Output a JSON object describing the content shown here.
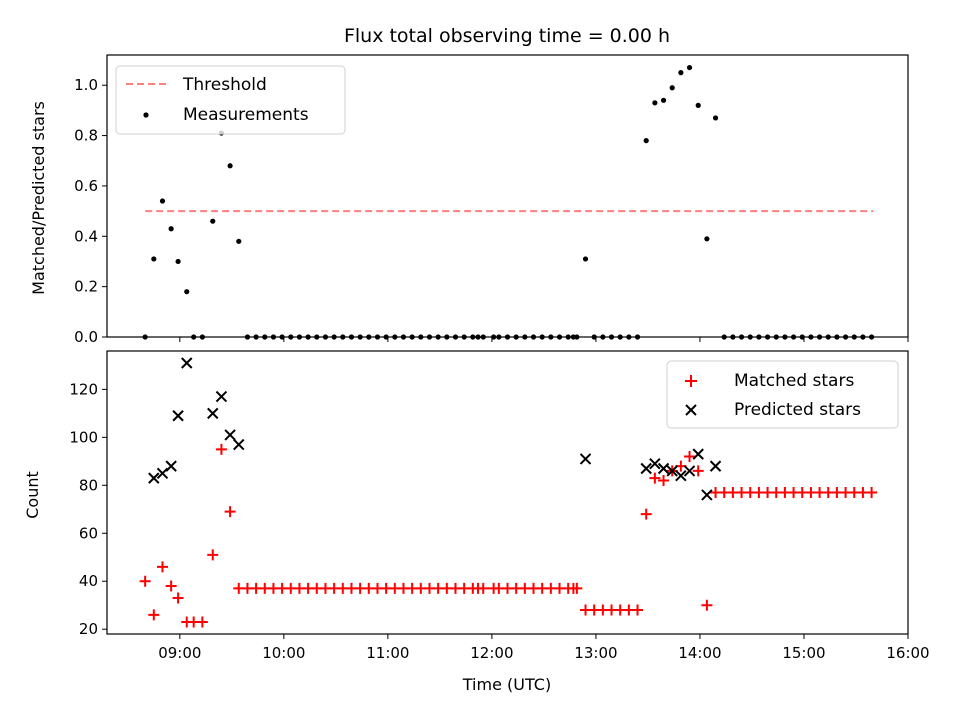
{
  "chart_data": [
    {
      "type": "scatter",
      "title": "Flux total observing time = 0.00 h",
      "xlabel": "",
      "ylabel": "Matched/Predicted stars",
      "xlim": [
        "08:18",
        "16:00"
      ],
      "ylim": [
        0,
        1.12
      ],
      "yticks": [
        {
          "value": 0.0,
          "label": "0.0"
        },
        {
          "value": 0.2,
          "label": "0.2"
        },
        {
          "value": 0.4,
          "label": "0.4"
        },
        {
          "value": 0.6,
          "label": "0.6"
        },
        {
          "value": 0.8,
          "label": "0.8"
        },
        {
          "value": 1.0,
          "label": "1.0"
        }
      ],
      "legend": {
        "placement": "upper-left",
        "entries": [
          {
            "label": "Threshold",
            "style": "dashed-line",
            "color": "#ff7f7f"
          },
          {
            "label": "Measurements",
            "style": "dot",
            "color": "#000000"
          }
        ]
      },
      "series": [
        {
          "name": "Threshold",
          "type": "line",
          "color": "#ff7f7f",
          "x": [
            "08:40",
            "15:40"
          ],
          "y": [
            0.5,
            0.5
          ]
        },
        {
          "name": "Measurements",
          "type": "scatter",
          "color": "#000000",
          "x": [
            "08:40",
            "08:45",
            "08:50",
            "08:55",
            "08:59",
            "09:04",
            "09:08",
            "09:13",
            "09:19",
            "09:24",
            "09:29",
            "09:34",
            "09:39",
            "09:44",
            "09:49",
            "09:54",
            "09:59",
            "10:04",
            "10:09",
            "10:14",
            "10:19",
            "10:24",
            "10:29",
            "10:34",
            "10:39",
            "10:44",
            "10:49",
            "10:54",
            "10:59",
            "11:04",
            "11:09",
            "11:14",
            "11:19",
            "11:24",
            "11:29",
            "11:34",
            "11:39",
            "11:44",
            "11:49",
            "11:52",
            "11:55",
            "12:01",
            "12:04",
            "12:09",
            "12:14",
            "12:19",
            "12:24",
            "12:29",
            "12:34",
            "12:39",
            "12:44",
            "12:47",
            "12:49",
            "12:54",
            "12:59",
            "13:04",
            "13:09",
            "13:14",
            "13:19",
            "13:24",
            "13:29",
            "13:34",
            "13:39",
            "13:44",
            "13:49",
            "13:54",
            "13:59",
            "14:04",
            "14:09",
            "14:14",
            "14:19",
            "14:24",
            "14:29",
            "14:34",
            "14:39",
            "14:44",
            "14:49",
            "14:54",
            "14:59",
            "15:04",
            "15:09",
            "15:14",
            "15:19",
            "15:24",
            "15:29",
            "15:34",
            "15:39"
          ],
          "y": [
            0.0,
            0.31,
            0.54,
            0.43,
            0.3,
            0.18,
            0.0,
            0.0,
            0.46,
            0.81,
            0.68,
            0.38,
            0.0,
            0.0,
            0.0,
            0.0,
            0.0,
            0.0,
            0.0,
            0.0,
            0.0,
            0.0,
            0.0,
            0.0,
            0.0,
            0.0,
            0.0,
            0.0,
            0.0,
            0.0,
            0.0,
            0.0,
            0.0,
            0.0,
            0.0,
            0.0,
            0.0,
            0.0,
            0.0,
            0.0,
            0.0,
            0.0,
            0.0,
            0.0,
            0.0,
            0.0,
            0.0,
            0.0,
            0.0,
            0.0,
            0.0,
            0.0,
            0.0,
            0.31,
            0.0,
            0.0,
            0.0,
            0.0,
            0.0,
            0.0,
            0.78,
            0.93,
            0.94,
            0.99,
            1.05,
            1.07,
            0.92,
            0.39,
            0.87,
            0.0,
            0.0,
            0.0,
            0.0,
            0.0,
            0.0,
            0.0,
            0.0,
            0.0,
            0.0,
            0.0,
            0.0,
            0.0,
            0.0,
            0.0,
            0.0,
            0.0,
            0.0
          ]
        }
      ]
    },
    {
      "type": "scatter",
      "title": "",
      "xlabel": "Time (UTC)",
      "ylabel": "Count",
      "xlim": [
        "08:18",
        "16:00"
      ],
      "ylim": [
        18,
        136
      ],
      "xticks": [
        {
          "value": "09:00",
          "label": "09:00"
        },
        {
          "value": "10:00",
          "label": "10:00"
        },
        {
          "value": "11:00",
          "label": "11:00"
        },
        {
          "value": "12:00",
          "label": "12:00"
        },
        {
          "value": "13:00",
          "label": "13:00"
        },
        {
          "value": "14:00",
          "label": "14:00"
        },
        {
          "value": "15:00",
          "label": "15:00"
        },
        {
          "value": "16:00",
          "label": "16:00"
        }
      ],
      "yticks": [
        {
          "value": 20,
          "label": "20"
        },
        {
          "value": 40,
          "label": "40"
        },
        {
          "value": 60,
          "label": "60"
        },
        {
          "value": 80,
          "label": "80"
        },
        {
          "value": 100,
          "label": "100"
        },
        {
          "value": 120,
          "label": "120"
        }
      ],
      "legend": {
        "placement": "upper-right",
        "entries": [
          {
            "label": "Matched stars",
            "style": "plus",
            "color": "#ff0000"
          },
          {
            "label": "Predicted stars",
            "style": "x",
            "color": "#000000"
          }
        ]
      },
      "series": [
        {
          "name": "Matched stars",
          "type": "scatter",
          "color": "#ff0000",
          "x": [
            "08:40",
            "08:45",
            "08:50",
            "08:55",
            "08:59",
            "09:04",
            "09:08",
            "09:13",
            "09:19",
            "09:24",
            "09:29",
            "09:34",
            "09:39",
            "09:44",
            "09:49",
            "09:54",
            "09:59",
            "10:04",
            "10:09",
            "10:14",
            "10:19",
            "10:24",
            "10:29",
            "10:34",
            "10:39",
            "10:44",
            "10:49",
            "10:54",
            "10:59",
            "11:04",
            "11:09",
            "11:14",
            "11:19",
            "11:24",
            "11:29",
            "11:34",
            "11:39",
            "11:44",
            "11:49",
            "11:52",
            "11:55",
            "12:01",
            "12:04",
            "12:09",
            "12:14",
            "12:19",
            "12:24",
            "12:29",
            "12:34",
            "12:39",
            "12:44",
            "12:47",
            "12:49",
            "12:54",
            "12:59",
            "13:04",
            "13:09",
            "13:14",
            "13:19",
            "13:24",
            "13:29",
            "13:34",
            "13:39",
            "13:44",
            "13:49",
            "13:54",
            "13:59",
            "14:04",
            "14:09",
            "14:14",
            "14:19",
            "14:24",
            "14:29",
            "14:34",
            "14:39",
            "14:44",
            "14:49",
            "14:54",
            "14:59",
            "15:04",
            "15:09",
            "15:14",
            "15:19",
            "15:24",
            "15:29",
            "15:34",
            "15:39"
          ],
          "y": [
            40,
            26,
            46,
            38,
            33,
            23,
            23,
            23,
            51,
            95,
            69,
            37,
            37,
            37,
            37,
            37,
            37,
            37,
            37,
            37,
            37,
            37,
            37,
            37,
            37,
            37,
            37,
            37,
            37,
            37,
            37,
            37,
            37,
            37,
            37,
            37,
            37,
            37,
            37,
            37,
            37,
            37,
            37,
            37,
            37,
            37,
            37,
            37,
            37,
            37,
            37,
            37,
            37,
            28,
            28,
            28,
            28,
            28,
            28,
            28,
            68,
            83,
            82,
            86,
            88,
            92,
            86,
            30,
            77,
            77,
            77,
            77,
            77,
            77,
            77,
            77,
            77,
            77,
            77,
            77,
            77,
            77,
            77,
            77,
            77,
            77,
            77
          ]
        },
        {
          "name": "Predicted stars",
          "type": "scatter",
          "color": "#000000",
          "x": [
            "08:45",
            "08:50",
            "08:55",
            "08:59",
            "09:04",
            "09:19",
            "09:24",
            "09:29",
            "09:34",
            "12:54",
            "13:29",
            "13:34",
            "13:39",
            "13:44",
            "13:49",
            "13:54",
            "13:59",
            "14:04",
            "14:09"
          ],
          "y": [
            83,
            85,
            88,
            109,
            131,
            110,
            117,
            101,
            97,
            91,
            87,
            89,
            87,
            86,
            84,
            86,
            93,
            76,
            88
          ]
        }
      ]
    }
  ]
}
